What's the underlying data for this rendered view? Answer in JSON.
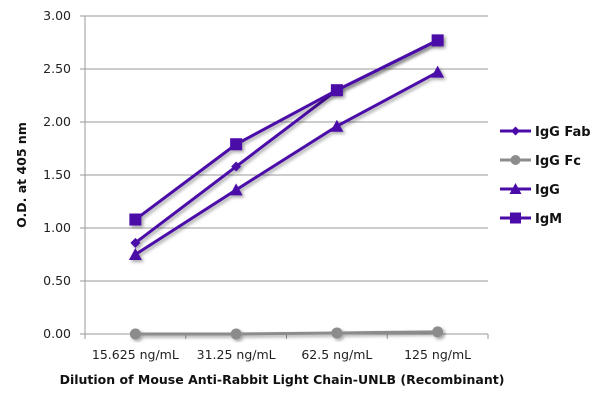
{
  "chart_data": {
    "type": "line",
    "title": "",
    "xlabel": "Dilution of Mouse Anti-Rabbit Light Chain-UNLB (Recombinant)",
    "ylabel": "O.D. at 405 nm",
    "categories": [
      "15.625 ng/mL",
      "31.25 ng/mL",
      "62.5 ng/mL",
      "125 ng/mL"
    ],
    "ylim": [
      0,
      3
    ],
    "yticks": [
      "0.00",
      "0.50",
      "1.00",
      "1.50",
      "2.00",
      "2.50",
      "3.00"
    ],
    "grid": "horizontal",
    "legend_position": "right",
    "series": [
      {
        "name": "IgG Fab",
        "marker": "diamond",
        "color": "#4B0BA8",
        "values": [
          0.86,
          1.58,
          2.3,
          2.77
        ]
      },
      {
        "name": "IgG Fc",
        "marker": "circle",
        "color": "#8C8C8C",
        "values": [
          0.0,
          0.0,
          0.01,
          0.02
        ]
      },
      {
        "name": "IgG",
        "marker": "triangle",
        "color": "#4B0BA8",
        "values": [
          0.75,
          1.36,
          1.96,
          2.47
        ]
      },
      {
        "name": "IgM",
        "marker": "square",
        "color": "#4B0BA8",
        "values": [
          1.08,
          1.79,
          2.3,
          2.77
        ]
      }
    ]
  }
}
